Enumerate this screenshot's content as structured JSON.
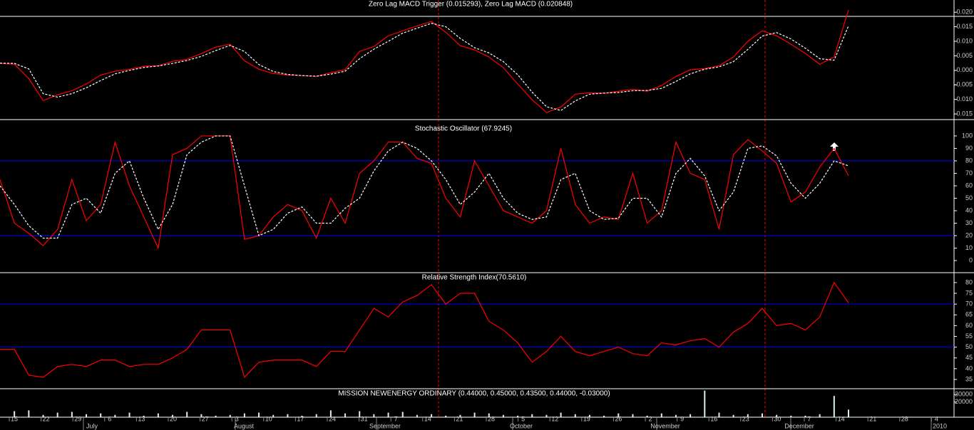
{
  "chart_data": [
    {
      "type": "line",
      "title": "Zero Lag MACD Trigger (0.015293), Zero Lag MACD (0.020848)",
      "ylim": [
        -0.0162,
        0.0242
      ],
      "yticks": [
        {
          "value": 0.02,
          "label": "0.020"
        },
        {
          "value": 0.015,
          "label": "0.015"
        },
        {
          "value": 0.01,
          "label": "0.010"
        },
        {
          "value": 0.005,
          "label": "0.005"
        },
        {
          "value": 0,
          "label": "0.000"
        },
        {
          "value": -0.005,
          "label": "-0.005"
        },
        {
          "value": -0.01,
          "label": "-0.010"
        },
        {
          "value": -0.015,
          "label": "-0.015"
        }
      ],
      "series": [
        {
          "color": "#ff0000",
          "dash": false,
          "values": [
            0.0024,
            0.0021,
            -0.0028,
            -0.0104,
            -0.0084,
            -0.007,
            -0.0047,
            -0.0016,
            -0.0003,
            0.0004,
            0.0014,
            0.0016,
            0.0031,
            0.0038,
            0.0058,
            0.008,
            0.009,
            0.0033,
            0.0004,
            -0.0011,
            -0.0016,
            -0.0018,
            -0.0021,
            -0.0008,
            0.0002,
            0.0065,
            0.0082,
            0.0119,
            0.0136,
            0.0153,
            0.0168,
            0.0131,
            0.0085,
            0.007,
            0.0046,
            0.0009,
            -0.0047,
            -0.0101,
            -0.0145,
            -0.0126,
            -0.0082,
            -0.0077,
            -0.0079,
            -0.0072,
            -0.0065,
            -0.0072,
            -0.0052,
            -0.0021,
            0.0002,
            0.0006,
            0.0016,
            0.0046,
            0.01,
            0.0136,
            0.0119,
            0.009,
            0.0058,
            0.0021,
            0.0046,
            0.0208
          ]
        },
        {
          "color": "#ffffff",
          "dash": true,
          "values": [
            0.0025,
            0.0024,
            0.0005,
            -0.008,
            -0.0092,
            -0.008,
            -0.006,
            -0.0035,
            -0.0012,
            0.0,
            0.001,
            0.0015,
            0.0024,
            0.0034,
            0.0048,
            0.0068,
            0.0086,
            0.0065,
            0.002,
            -0.0004,
            -0.0014,
            -0.0018,
            -0.002,
            -0.0013,
            -0.0003,
            0.004,
            0.0073,
            0.01,
            0.0128,
            0.0145,
            0.0162,
            0.015,
            0.011,
            0.0078,
            0.006,
            0.003,
            -0.0015,
            -0.0075,
            -0.0125,
            -0.0138,
            -0.0105,
            -0.0082,
            -0.0078,
            -0.0076,
            -0.007,
            -0.0069,
            -0.0062,
            -0.0038,
            -0.0012,
            0.0004,
            0.0012,
            0.003,
            0.0072,
            0.0118,
            0.013,
            0.0108,
            0.0076,
            0.004,
            0.0035,
            0.0153
          ]
        }
      ]
    },
    {
      "type": "line",
      "title": "Stochastic Oscillator (67.9245)",
      "ylim": [
        -9.7,
        113.1
      ],
      "yticks": [
        100,
        90,
        80,
        70,
        60,
        50,
        40,
        30,
        20,
        10,
        0
      ],
      "hlines": [
        80,
        20
      ],
      "hline_color": "#0000ff",
      "series": [
        {
          "color": "#ff0000",
          "dash": false,
          "values": [
            65,
            30,
            22,
            12,
            25,
            65,
            32,
            45,
            95,
            60,
            35,
            10,
            85,
            90,
            100,
            100,
            100,
            17,
            20,
            35,
            45,
            40,
            18,
            50,
            30,
            70,
            80,
            95,
            95,
            82,
            78,
            50,
            35,
            80,
            60,
            40,
            35,
            30,
            40,
            90,
            45,
            30,
            35,
            33,
            70,
            30,
            40,
            95,
            70,
            65,
            25,
            85,
            97,
            88,
            78,
            47,
            55,
            75,
            90,
            67.9245
          ]
        },
        {
          "color": "#ffffff",
          "dash": true,
          "values": [
            60,
            45,
            28,
            18,
            18,
            45,
            50,
            38,
            70,
            80,
            50,
            25,
            45,
            85,
            95,
            100,
            100,
            60,
            20,
            25,
            38,
            43,
            30,
            30,
            42,
            50,
            72,
            88,
            95,
            90,
            80,
            65,
            45,
            55,
            70,
            50,
            38,
            33,
            35,
            65,
            70,
            40,
            33,
            34,
            50,
            50,
            35,
            70,
            82,
            68,
            40,
            55,
            90,
            92,
            84,
            62,
            50,
            62,
            80,
            76
          ]
        }
      ]
    },
    {
      "type": "line",
      "title": "Relative Strength Index(70.5610)",
      "ylim": [
        30.7,
        84.6
      ],
      "yticks": [
        80,
        75,
        70,
        65,
        60,
        55,
        50,
        45,
        40,
        35
      ],
      "hlines": [
        70,
        50
      ],
      "hline_color": "#0000ff",
      "series": [
        {
          "color": "#ff0000",
          "dash": false,
          "values": [
            49,
            49,
            37,
            36,
            41,
            42,
            41,
            44,
            44,
            41,
            42,
            42,
            45,
            49,
            58,
            58,
            58,
            36,
            43,
            44,
            44,
            44,
            41,
            48,
            48,
            58,
            68,
            64,
            71,
            74,
            79,
            70,
            75,
            75,
            62,
            58,
            52,
            43,
            48,
            55,
            48,
            46,
            48,
            50,
            47,
            46,
            52,
            51,
            53,
            54,
            50,
            57,
            61,
            68,
            60,
            61,
            58,
            64,
            80,
            70.561
          ]
        }
      ]
    },
    {
      "type": "bar",
      "title": "MISSION NEWENERGY ORDINARY (0.44000, 0.45000, 0.43500, 0.44000, -0.03000)",
      "ylim": [
        0,
        37500
      ],
      "yticks": [
        30000,
        20000
      ],
      "color": "#d8f0f0",
      "values": [
        0,
        8000,
        9000,
        3000,
        6000,
        7000,
        4000,
        5000,
        3000,
        6000,
        2000,
        5000,
        3000,
        7000,
        4000,
        2000,
        3000,
        5000,
        6000,
        3000,
        4000,
        2000,
        4000,
        9000,
        5000,
        8000,
        4000,
        6000,
        7000,
        3000,
        4000,
        2000,
        3000,
        6000,
        5000,
        3000,
        2000,
        4000,
        3000,
        6000,
        4000,
        3000,
        2000,
        5000,
        4000,
        2000,
        5000,
        3000,
        4000,
        35000,
        6000,
        3000,
        4000,
        5000,
        3000,
        2000,
        2000,
        4000,
        28000,
        10000
      ]
    }
  ],
  "x_axis": {
    "day_labels": [
      "15",
      "22",
      "29",
      "6",
      "13",
      "20",
      "27",
      "3",
      "10",
      "17",
      "24",
      "31",
      "7",
      "14",
      "21",
      "28",
      "5",
      "12",
      "19",
      "26",
      "2",
      "9",
      "16",
      "23",
      "30",
      "7",
      "14",
      "21",
      "28",
      "4"
    ],
    "month_labels": [
      "July",
      "August",
      "September",
      "October",
      "November",
      "December",
      "2010"
    ]
  }
}
